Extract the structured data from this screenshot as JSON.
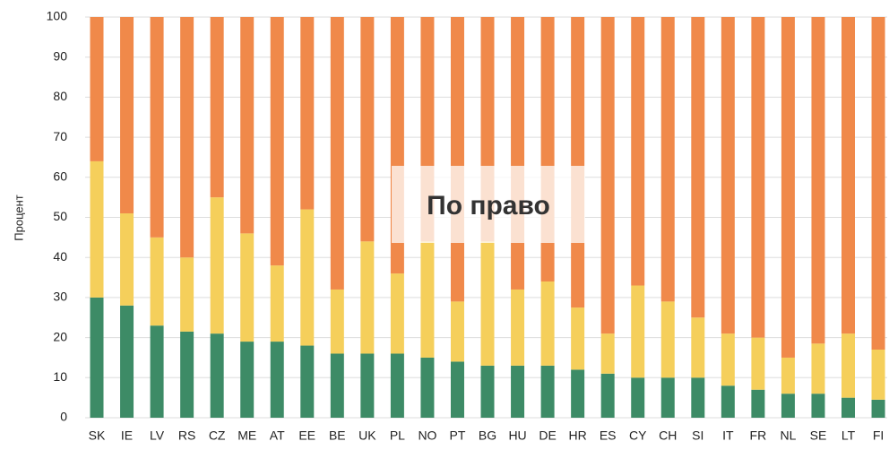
{
  "chart_data": {
    "type": "stacked_bar",
    "categories": [
      "SK",
      "IE",
      "LV",
      "RS",
      "CZ",
      "ME",
      "AT",
      "EE",
      "BE",
      "UK",
      "PL",
      "NO",
      "PT",
      "BG",
      "HU",
      "DE",
      "HR",
      "ES",
      "CY",
      "CH",
      "SI",
      "IT",
      "FR",
      "NL",
      "SE",
      "LT",
      "FI"
    ],
    "series": [
      {
        "color": "#3d8b66",
        "values": [
          30,
          28,
          23,
          21.5,
          21,
          19,
          19,
          18,
          16,
          16,
          16,
          15,
          14,
          13,
          13,
          13,
          12,
          11,
          10,
          10,
          10,
          8,
          7,
          6,
          6,
          5,
          4.5
        ]
      },
      {
        "color": "#f5cf5b",
        "values": [
          34,
          23,
          22,
          18.5,
          34,
          27,
          19,
          34,
          16,
          28,
          20,
          29,
          15,
          31,
          19,
          21,
          15.5,
          10,
          23,
          19,
          15,
          13,
          13,
          9,
          12.5,
          16,
          12.5
        ]
      },
      {
        "color": "#f0894a",
        "values": [
          36,
          49,
          55,
          60,
          45,
          54,
          62,
          48,
          68,
          56,
          64,
          56,
          71,
          56,
          68,
          66,
          72.5,
          79,
          67,
          71,
          75,
          79,
          80,
          85,
          81.5,
          79,
          83
        ]
      }
    ],
    "y_label": "Процент",
    "annotation": "По право",
    "ylim": [
      0,
      100
    ],
    "yticks": [
      0,
      10,
      20,
      30,
      40,
      50,
      60,
      70,
      80,
      90,
      100
    ],
    "grid": true
  }
}
